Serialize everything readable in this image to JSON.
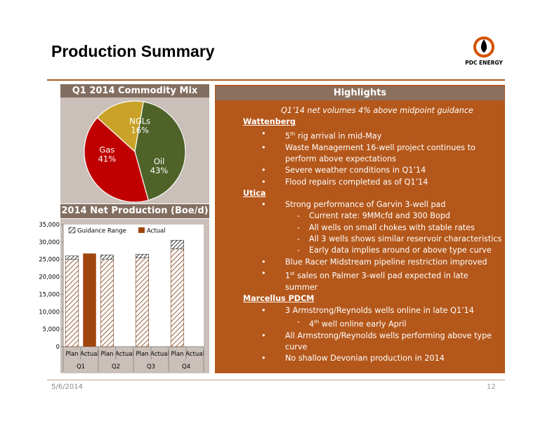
{
  "slide": {
    "title": "Production Summary",
    "brand": "PDC ENERGY",
    "date": "5/6/2014",
    "page_number": "12"
  },
  "pie": {
    "title": "Q1 2014 Commodity Mix"
  },
  "bar": {
    "title": "2014 Net Production (Boe/d)"
  },
  "highlights": {
    "title": "Highlights",
    "subtitle": "Q1’14 net volumes 4% above midpoint guidance",
    "wattenberg": {
      "heading": "Wattenberg",
      "b1_pre": "5",
      "b1_sup": "th",
      "b1_post": " rig arrival in mid-May",
      "b2": "Waste Management 16-well  project continues to perform above expectations",
      "b3": "Severe weather conditions in Q1’14",
      "b4": "Flood repairs completed as of Q1’14"
    },
    "utica": {
      "heading": "Utica",
      "b1": "Strong performance of Garvin 3-well pad",
      "s1": "Current rate: 9MMcfd and 300 Bopd",
      "s2": "All wells on small chokes with stable rates",
      "s3": "All 3 wells shows similar reservoir characteristics",
      "s4": "Early data implies around or above type curve",
      "b2": "Blue Racer Midstream pipeline restriction improved",
      "b3_pre": "1",
      "b3_sup": "st",
      "b3_post": " sales on Palmer 3-well pad expected in late summer"
    },
    "marcellus": {
      "heading": "Marcellus PDCM",
      "b1": " 3 Armstrong/Reynolds wells online in late Q1’14",
      "s1_pre": "4",
      "s1_sup": "th",
      "s1_post": " well online early April",
      "b2": "All Armstrong/Reynolds wells performing above type curve",
      "b3": "No shallow Devonian production in 2014"
    }
  },
  "chart_data": [
    {
      "type": "pie",
      "title": "Q1 2014 Commodity Mix",
      "slices": [
        {
          "label": "Oil",
          "value": 43,
          "display": "43%",
          "color": "#4f6228"
        },
        {
          "label": "Gas",
          "value": 41,
          "display": "41%",
          "color": "#c00000"
        },
        {
          "label": "NGLs",
          "value": 16,
          "display": "16%",
          "color": "#c9a227"
        }
      ]
    },
    {
      "type": "bar",
      "title": "2014 Net Production (Boe/d)",
      "legend": [
        "Guidance Range",
        "Actual"
      ],
      "legend_position": "top-left",
      "quarters": [
        "Q1",
        "Q2",
        "Q3",
        "Q4"
      ],
      "sub_categories": [
        "Plan",
        "Actual"
      ],
      "ylim": [
        0,
        35000
      ],
      "yticks": [
        "0",
        "5,000",
        "10,000",
        "15,000",
        "20,000",
        "25,000",
        "30,000",
        "35,000"
      ],
      "plan_low": [
        25000,
        25000,
        25500,
        28000
      ],
      "plan_high": [
        26000,
        26300,
        26500,
        30500
      ],
      "actual": [
        26700,
        null,
        null,
        null
      ],
      "colors": {
        "plan": "#ffffff",
        "hatch": "#7a3a12",
        "actual": "#a0450e"
      }
    }
  ]
}
